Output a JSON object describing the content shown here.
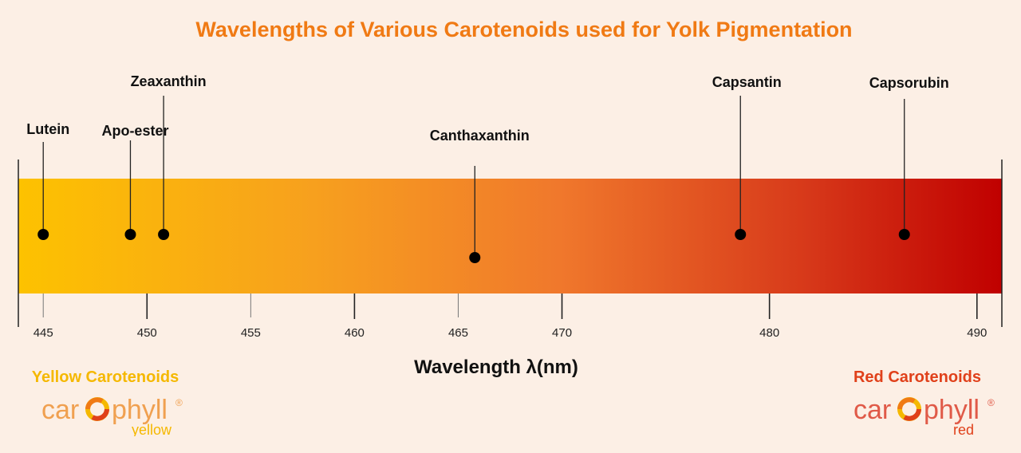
{
  "chart_data": {
    "type": "scatter",
    "title": "Wavelengths of Various Carotenoids used for Yolk Pigmentation",
    "xlabel": "Wavelength λ(nm)",
    "ylabel": "",
    "xlim": [
      443.8,
      491.2
    ],
    "xticks": [
      445,
      450,
      455,
      460,
      465,
      470,
      480,
      490
    ],
    "xtick_labels": [
      "445",
      "450",
      "455",
      "460",
      "465",
      "470",
      "480",
      "490"
    ],
    "gradient_colors": [
      "#fdc200",
      "#f7a01e",
      "#f0782c",
      "#d7391a",
      "#c00000"
    ],
    "points": [
      {
        "label": "Lutein",
        "x": 445
      },
      {
        "label": "Apo-ester",
        "x": 449.2
      },
      {
        "label": "Zeaxanthin",
        "x": 450.8
      },
      {
        "label": "Canthaxanthin",
        "x": 465.8
      },
      {
        "label": "Capsantin",
        "x": 478.6
      },
      {
        "label": "Capsorubin",
        "x": 486.5
      }
    ],
    "grid": false,
    "legend": "none"
  },
  "brands": {
    "yellow": {
      "heading": "Yellow Carotenoids",
      "word_left": "car",
      "word_right": "phyll",
      "mark": "®",
      "variant": "yellow",
      "color": "#f5b800",
      "word_color": "#f0a050"
    },
    "red": {
      "heading": "Red Carotenoids",
      "word_left": "car",
      "word_right": "phyll",
      "mark": "®",
      "variant": "red",
      "color": "#e0401a",
      "word_color": "#e05a48"
    }
  }
}
